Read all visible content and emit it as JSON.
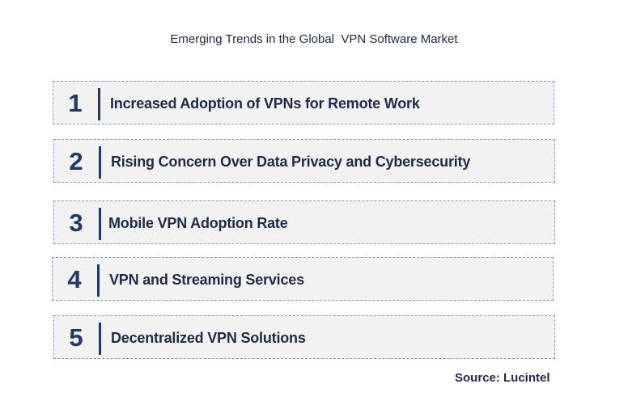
{
  "title": "Emerging Trends in the Global  VPN Software Market",
  "trends": [
    {
      "number": "1",
      "label": "Increased Adoption of VPNs for Remote Work"
    },
    {
      "number": "2",
      "label": "Rising Concern Over Data Privacy and Cybersecurity"
    },
    {
      "number": "3",
      "label": "Mobile VPN Adoption Rate"
    },
    {
      "number": "4",
      "label": "VPN and Streaming Services"
    },
    {
      "number": "5",
      "label": "Decentralized VPN Solutions"
    }
  ],
  "source": "Source: Lucintel",
  "colors": {
    "accent": "#1f3864",
    "box_fill": "#f2f2f2",
    "box_border": "#8a9bb8",
    "text": "#1f2a44"
  }
}
